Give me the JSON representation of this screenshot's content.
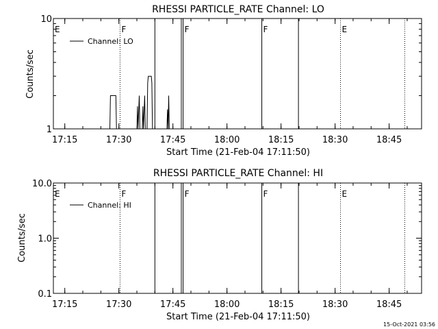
{
  "footer": {
    "timestamp": "15-Oct-2021 03:56"
  },
  "chart_data": [
    {
      "type": "line",
      "title": "RHESSI PARTICLE_RATE Channel: LO",
      "xlabel": "Start Time (21-Feb-04 17:11:50)",
      "ylabel": "Counts/sec",
      "yscale": "log",
      "ylim": [
        1,
        10
      ],
      "yticks": [
        {
          "v": 1,
          "label": "1"
        },
        {
          "v": 10,
          "label": "10"
        }
      ],
      "xlim": [
        "17:11:50",
        "18:54:00"
      ],
      "xticks": [
        "17:15",
        "17:30",
        "17:45",
        "18:00",
        "18:15",
        "18:30",
        "18:45"
      ],
      "legend": {
        "label": "Channel: LO",
        "placement": "top-left"
      },
      "grid": false,
      "series": [
        {
          "name": "Channel: LO",
          "points": [
            [
              "17:27:30",
              1
            ],
            [
              "17:27:40",
              2
            ],
            [
              "17:29:10",
              2
            ],
            [
              "17:29:20",
              1
            ],
            [
              "17:35:00",
              1
            ],
            [
              "17:35:10",
              1.6
            ],
            [
              "17:35:20",
              1
            ],
            [
              "17:35:40",
              2
            ],
            [
              "17:35:50",
              1
            ],
            [
              "17:36:30",
              1
            ],
            [
              "17:36:40",
              1.6
            ],
            [
              "17:36:50",
              1
            ],
            [
              "17:37:10",
              2
            ],
            [
              "17:37:20",
              1
            ],
            [
              "17:37:50",
              1
            ],
            [
              "17:38:00",
              2.6
            ],
            [
              "17:38:10",
              3
            ],
            [
              "17:39:00",
              3
            ],
            [
              "17:39:10",
              2.6
            ],
            [
              "17:39:20",
              1
            ],
            [
              "17:43:20",
              1
            ],
            [
              "17:43:30",
              1.5
            ],
            [
              "17:43:40",
              1
            ],
            [
              "17:43:50",
              2
            ],
            [
              "17:44:00",
              1
            ]
          ]
        }
      ]
    },
    {
      "type": "line",
      "title": "RHESSI PARTICLE_RATE Channel: HI",
      "xlabel": "Start Time (21-Feb-04 17:11:50)",
      "ylabel": "Counts/sec",
      "yscale": "log",
      "ylim": [
        0.1,
        10
      ],
      "yticks": [
        {
          "v": 0.1,
          "label": "0.1"
        },
        {
          "v": 1,
          "label": "1.0"
        },
        {
          "v": 10,
          "label": "10.0"
        }
      ],
      "xlim": [
        "17:11:50",
        "18:54:00"
      ],
      "xticks": [
        "17:15",
        "17:30",
        "17:45",
        "18:00",
        "18:15",
        "18:30",
        "18:45"
      ],
      "legend": {
        "label": "Channel: HI",
        "placement": "top-left"
      },
      "grid": false,
      "series": [
        {
          "name": "Channel: HI",
          "points": []
        }
      ]
    }
  ],
  "markers": [
    {
      "time": "17:11:50",
      "label": "E",
      "style": "none"
    },
    {
      "time": "17:30:20",
      "label": "F",
      "style": "dotted"
    },
    {
      "time": "17:40:00",
      "label": "",
      "style": "solid"
    },
    {
      "time": "17:47:20",
      "label": "",
      "style": "solid"
    },
    {
      "time": "17:47:50",
      "label": "F",
      "style": "solid"
    },
    {
      "time": "18:09:40",
      "label": "F",
      "style": "solid"
    },
    {
      "time": "18:19:50",
      "label": "",
      "style": "solid"
    },
    {
      "time": "18:31:30",
      "label": "E",
      "style": "dotted"
    },
    {
      "time": "18:49:20",
      "label": "",
      "style": "dotted"
    }
  ]
}
